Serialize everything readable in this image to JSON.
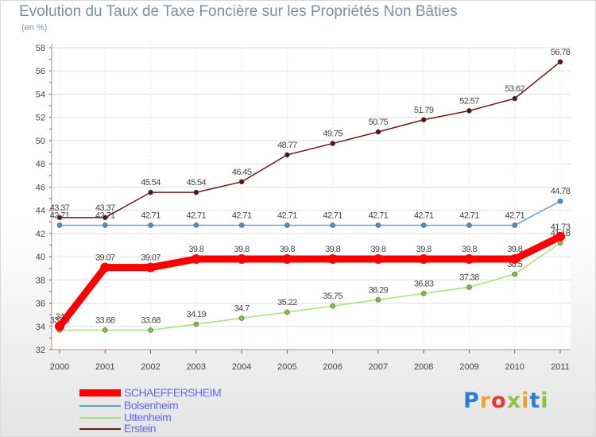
{
  "title": "Evolution du Taux de Taxe Foncière sur les Propriétés Non Bâties",
  "unit_label": "(en %)",
  "logo_text": "Proxiti",
  "chart_data": {
    "type": "line",
    "title": "Evolution du Taux de Taxe Foncière sur les Propriétés Non Bâties",
    "ylabel": "(en %)",
    "xlabel": "",
    "ylim": [
      32,
      58
    ],
    "yticks": [
      32,
      34,
      36,
      38,
      40,
      42,
      44,
      46,
      48,
      50,
      52,
      54,
      56,
      58
    ],
    "categories": [
      "2000",
      "2001",
      "2002",
      "2003",
      "2004",
      "2005",
      "2006",
      "2007",
      "2008",
      "2009",
      "2010",
      "2011"
    ],
    "series": [
      {
        "name": "Erstein",
        "color": "#6b1a1a",
        "marker": "#5a1010",
        "values": [
          43.37,
          43.37,
          45.54,
          45.54,
          46.45,
          48.77,
          49.75,
          50.75,
          51.79,
          52.57,
          53.62,
          56.78
        ],
        "labels": [
          "43.37",
          "43.37",
          "45.54",
          "45.54",
          "46.45",
          "48.77",
          "49.75",
          "50.75",
          "51.79",
          "52.57",
          "53.62",
          "56.78"
        ]
      },
      {
        "name": "Bolsenheim",
        "color": "#6aa0d0",
        "marker": "#4f8dc9",
        "values": [
          42.71,
          42.71,
          42.71,
          42.71,
          42.71,
          42.71,
          42.71,
          42.71,
          42.71,
          42.71,
          42.71,
          44.78
        ],
        "labels": [
          "42.71",
          "42.71",
          "42.71",
          "42.71",
          "42.71",
          "42.71",
          "42.71",
          "42.71",
          "42.71",
          "42.71",
          "42.71",
          "44.78"
        ]
      },
      {
        "name": "Uttenheim",
        "color": "#a8e07a",
        "marker": "#7cc43c",
        "values": [
          33.68,
          33.68,
          33.68,
          34.19,
          34.7,
          35.22,
          35.75,
          36.29,
          36.83,
          37.38,
          38.5,
          41.18
        ],
        "labels": [
          "33.68",
          "33.68",
          "33.68",
          "34.19",
          "34.7",
          "35.22",
          "35.75",
          "36.29",
          "36.83",
          "37.38",
          "38.5",
          "41.18"
        ]
      },
      {
        "name": "SCHAEFFERSHEIM",
        "color": "#ff0000",
        "marker": "#ff0000",
        "values": [
          34.0,
          39.07,
          39.07,
          39.8,
          39.8,
          39.8,
          39.8,
          39.8,
          39.8,
          39.8,
          39.8,
          41.73
        ],
        "labels": [
          "34",
          "39.07",
          "39.07",
          "39.8",
          "39.8",
          "39.8",
          "39.8",
          "39.8",
          "39.8",
          "39.8",
          "39.8",
          "41.73"
        ]
      }
    ],
    "legend": [
      {
        "name": "SCHAEFFERSHEIM",
        "color": "#ff0000",
        "text_color": "#6666ee",
        "thick": true
      },
      {
        "name": "Bolsenheim",
        "color": "#6aa0d0",
        "text_color": "#6666ee",
        "thick": false
      },
      {
        "name": "Uttenheim",
        "color": "#a8e07a",
        "text_color": "#6666ee",
        "thick": false
      },
      {
        "name": "Erstein",
        "color": "#6b1a1a",
        "text_color": "#6666ee",
        "thick": false
      }
    ],
    "legend_position": "bottom-left"
  }
}
